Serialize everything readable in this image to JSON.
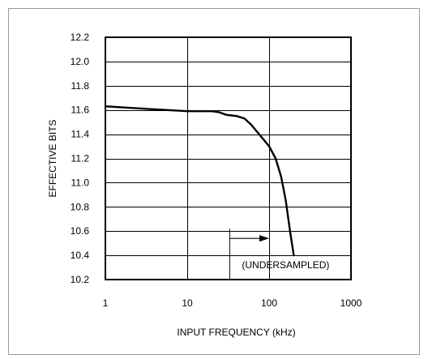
{
  "chart_data": {
    "type": "line",
    "title": "",
    "xlabel": "INPUT FREQUENCY (kHz)",
    "ylabel": "EFFECTIVE BITS",
    "x_scale": "log",
    "xlim": [
      1,
      1000
    ],
    "ylim": [
      10.2,
      12.2
    ],
    "x_ticks": [
      1,
      10,
      100,
      1000
    ],
    "x_tick_labels": [
      "1",
      "10",
      "100",
      "1000"
    ],
    "y_ticks": [
      10.2,
      10.4,
      10.6,
      10.8,
      11.0,
      11.2,
      11.4,
      11.6,
      11.8,
      12.0,
      12.2
    ],
    "y_tick_labels": [
      "10.2",
      "10.4",
      "10.6",
      "10.8",
      "11.0",
      "11.2",
      "11.4",
      "11.6",
      "11.8",
      "12.0",
      "12.2"
    ],
    "grid": true,
    "series": [
      {
        "x": [
          1,
          3,
          10,
          20,
          25,
          30,
          40,
          50,
          60,
          80,
          100,
          120,
          140,
          160,
          180,
          200
        ],
        "y": [
          11.63,
          11.61,
          11.59,
          11.59,
          11.58,
          11.56,
          11.55,
          11.53,
          11.48,
          11.38,
          11.3,
          11.2,
          11.05,
          10.85,
          10.6,
          10.4
        ]
      }
    ],
    "annotations": [
      {
        "text": "(UNDERSAMPLED)",
        "arrow_from_x": 33,
        "arrow_to_x": 100,
        "arrow_y": 10.54,
        "text_x": 33,
        "text_y": 10.32,
        "box_to_x": 1000,
        "box_bottom_y": 10.2
      }
    ],
    "border_color": "#000000",
    "line_color": "#000000",
    "grid_color": "#000000"
  }
}
